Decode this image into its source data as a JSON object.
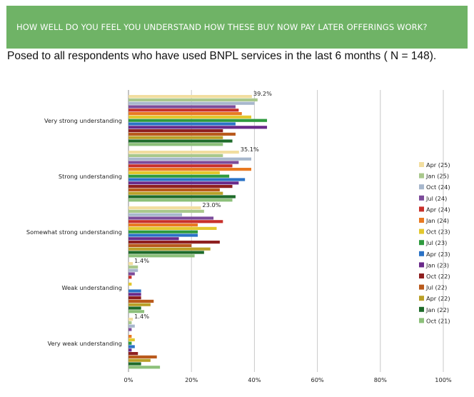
{
  "banner": {
    "title": "HOW WELL DO YOU FEEL YOU UNDERSTAND HOW THESE BUY NOW PAY LATER OFFERINGS WORK?"
  },
  "subtitle": "Posed to all respondents who have used BNPL services in the last 6 months ( N = 148).",
  "chart_data": {
    "type": "bar",
    "orientation": "horizontal",
    "categories": [
      "Very strong understanding",
      "Strong understanding",
      "Somewhat strong understanding",
      "Weak understanding",
      "Very weak understanding"
    ],
    "xlim": [
      0,
      100
    ],
    "x_ticks": [
      "0%",
      "20%",
      "40%",
      "60%",
      "80%",
      "100%"
    ],
    "grid": "vertical",
    "legend_position": "right",
    "data_labels": [
      {
        "category": "Very strong understanding",
        "series": "Apr (25)",
        "text": "39.2%"
      },
      {
        "category": "Strong understanding",
        "series": "Apr (25)",
        "text": "35.1%"
      },
      {
        "category": "Somewhat strong understanding",
        "series": "Apr (25)",
        "text": "23.0%"
      },
      {
        "category": "Weak understanding",
        "series": "Apr (25)",
        "text": "1.4%"
      },
      {
        "category": "Very weak understanding",
        "series": "Apr (25)",
        "text": "1.4%"
      }
    ],
    "series": [
      {
        "name": "Apr (25)",
        "color": "#f2dea0",
        "values": [
          39.2,
          35.1,
          23.0,
          1.4,
          1.4
        ]
      },
      {
        "name": "Jan (25)",
        "color": "#a9c88c",
        "values": [
          41,
          30,
          24,
          3,
          1
        ]
      },
      {
        "name": "Oct (24)",
        "color": "#a7b7cc",
        "values": [
          40,
          39,
          17,
          3,
          2
        ]
      },
      {
        "name": "Jul (24)",
        "color": "#7c4b9a",
        "values": [
          34,
          35,
          27,
          2,
          1
        ]
      },
      {
        "name": "Apr (24)",
        "color": "#c8302a",
        "values": [
          35,
          33,
          30,
          1,
          0
        ]
      },
      {
        "name": "Jan (24)",
        "color": "#e97a22",
        "values": [
          36,
          39,
          22,
          0,
          1
        ]
      },
      {
        "name": "Oct (23)",
        "color": "#e3c82e",
        "values": [
          39,
          29,
          28,
          1,
          2
        ]
      },
      {
        "name": "Jul (23)",
        "color": "#2e9a3e",
        "values": [
          44,
          32,
          22,
          0,
          1
        ]
      },
      {
        "name": "Apr (23)",
        "color": "#2a72c6",
        "values": [
          34,
          37,
          22,
          4,
          2
        ]
      },
      {
        "name": "Jan (23)",
        "color": "#6a2a8a",
        "values": [
          44,
          35,
          16,
          4,
          1
        ]
      },
      {
        "name": "Oct (22)",
        "color": "#8e1f1f",
        "values": [
          30,
          33,
          29,
          4,
          3
        ]
      },
      {
        "name": "Jul (22)",
        "color": "#b95a1c",
        "values": [
          34,
          29,
          20,
          8,
          9
        ]
      },
      {
        "name": "Apr (22)",
        "color": "#b9a028",
        "values": [
          30,
          30,
          26,
          7,
          7
        ]
      },
      {
        "name": "Jan (22)",
        "color": "#1e6b2a",
        "values": [
          33,
          34,
          24,
          4,
          4
        ]
      },
      {
        "name": "Oct (21)",
        "color": "#8cc07a",
        "values": [
          30,
          33,
          21,
          5,
          10
        ]
      }
    ]
  }
}
